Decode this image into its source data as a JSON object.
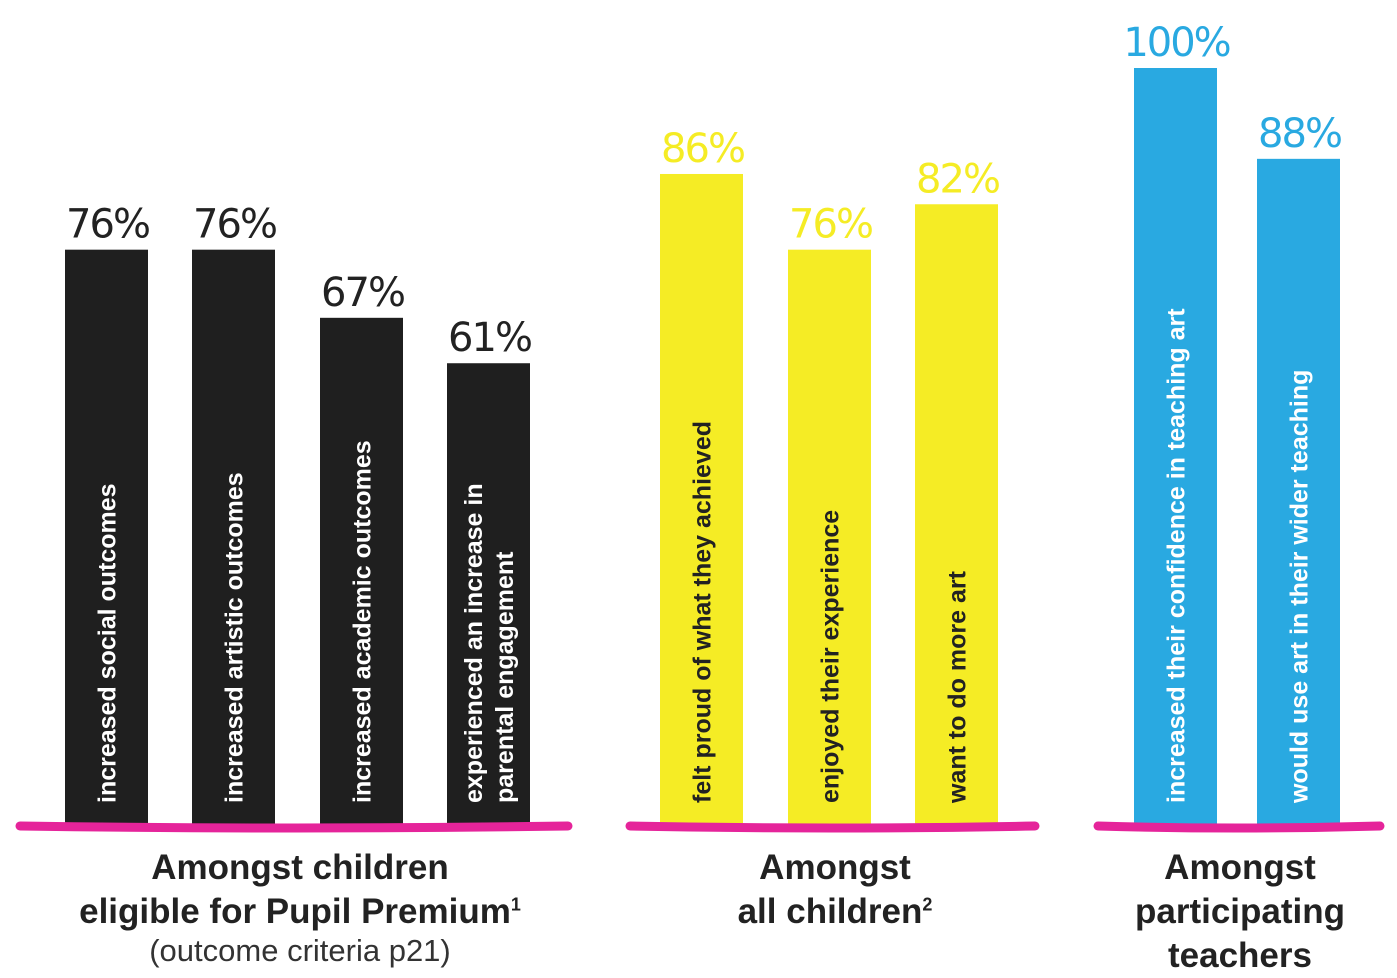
{
  "chart_data": [
    {
      "type": "bar",
      "group_label": [
        "Amongst children",
        "eligible for Pupil Premium"
      ],
      "footnote_mark": "1",
      "note": "(outcome criteria p21)",
      "color": "#1f1f1f",
      "value_color": "#222222",
      "text_color": "#ffffff",
      "ylim": [
        0,
        100
      ],
      "categories": [
        [
          "increased social outcomes"
        ],
        [
          "increased artistic outcomes"
        ],
        [
          "increased academic outcomes"
        ],
        [
          "experienced an increase in",
          "parental engagement"
        ]
      ],
      "values": [
        76,
        76,
        67,
        61
      ],
      "value_labels": [
        "76%",
        "76%",
        "67%",
        "61%"
      ]
    },
    {
      "type": "bar",
      "group_label": [
        "Amongst",
        "all children"
      ],
      "footnote_mark": "2",
      "note": "",
      "color": "#f5ec25",
      "value_color": "#f5ec25",
      "text_color": "#222222",
      "ylim": [
        0,
        100
      ],
      "categories": [
        [
          "felt proud of what they achieved"
        ],
        [
          "enjoyed their experience"
        ],
        [
          "want to do more art"
        ]
      ],
      "values": [
        86,
        76,
        82
      ],
      "value_labels": [
        "86%",
        "76%",
        "82%"
      ]
    },
    {
      "type": "bar",
      "group_label": [
        "Amongst",
        "participating",
        "teachers"
      ],
      "footnote_mark": "",
      "note": "",
      "color": "#29a9e1",
      "value_color": "#29a9e1",
      "text_color": "#ffffff",
      "ylim": [
        0,
        100
      ],
      "categories": [
        [
          "increased their confidence in teaching art"
        ],
        [
          "would use art in their wider teaching"
        ]
      ],
      "values": [
        100,
        88
      ],
      "value_labels": [
        "100%",
        "88%"
      ]
    }
  ],
  "baseline_color": "#e5249a"
}
